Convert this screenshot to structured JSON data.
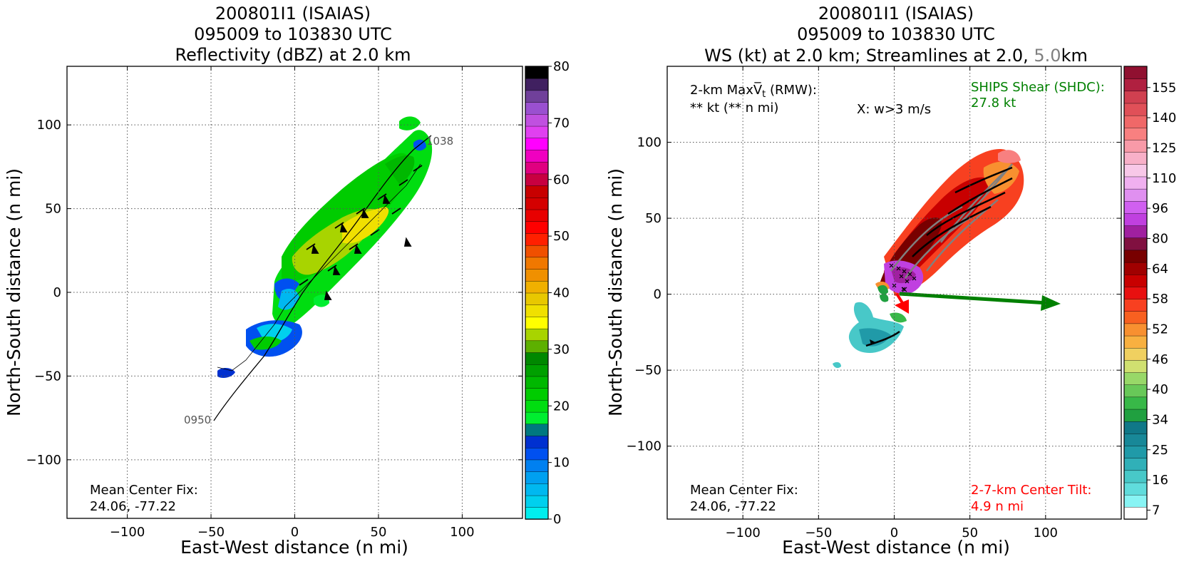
{
  "panels": [
    {
      "title_lines": [
        "200801I1 (ISAIAS)",
        "095009 to 103830 UTC",
        "Reflectivity (dBZ) at 2.0 km"
      ],
      "xlabel": "East-West distance (n mi)",
      "ylabel": "North-South distance (n mi)",
      "xlim": [
        -136,
        136
      ],
      "ylim": [
        -135,
        135
      ],
      "xticks": [
        -100,
        -50,
        0,
        50,
        100
      ],
      "yticks": [
        -100,
        -50,
        0,
        50,
        100
      ],
      "grid": true,
      "annotations": {
        "center_fix_label": "Mean Center Fix:",
        "center_fix_value": "24.06, -77.22",
        "track_start": "0950",
        "track_end": "1038"
      },
      "colorbar": {
        "tick_labels": [
          "0",
          "10",
          "20",
          "30",
          "40",
          "50",
          "60",
          "70",
          "80"
        ],
        "colors": [
          "#00eeee",
          "#00d0ee",
          "#00b8f0",
          "#00a0f0",
          "#0080f0",
          "#0050f0",
          "#0030d0",
          "#007880",
          "#00ee30",
          "#00dd10",
          "#00cc00",
          "#00b800",
          "#00a000",
          "#008800",
          "#5db000",
          "#a8d400",
          "#ffff00",
          "#f0e000",
          "#e8c800",
          "#f0b000",
          "#f09000",
          "#f07800",
          "#f05000",
          "#ff2000",
          "#ff0000",
          "#e80000",
          "#d40000",
          "#c80000",
          "#c80040",
          "#e00080",
          "#f000c0",
          "#ff00ff",
          "#e040f0",
          "#c050e0",
          "#9a50d0",
          "#70409a",
          "#402060",
          "#000000"
        ]
      }
    },
    {
      "title_lines": [
        "200801I1 (ISAIAS)",
        "095009 to 103830 UTC",
        "WS (kt) at 2.0 km; Streamlines at 2.0, ",
        "5.0",
        "km"
      ],
      "xlabel": "East-West distance (n mi)",
      "ylabel": "North-South distance (n mi)",
      "xlim": [
        -150,
        150
      ],
      "ylim": [
        -148,
        150
      ],
      "xticks": [
        -100,
        -50,
        0,
        50,
        100
      ],
      "yticks": [
        -100,
        -50,
        0,
        50,
        100
      ],
      "grid": true,
      "annotations": {
        "maxvt_line1": "2-km MaxV̅t (RMW):",
        "maxvt_line2": "** kt (** n mi)",
        "w_marker": "X: w>3 m/s",
        "shear_label": "SHIPS Shear (SHDC):",
        "shear_value": "27.8 kt",
        "center_fix_label": "Mean Center Fix:",
        "center_fix_value": "24.06, -77.22",
        "tilt_label": "2-7-km Center Tilt:",
        "tilt_value": "4.9 n mi"
      },
      "colorbar": {
        "tick_labels": [
          "7",
          "16",
          "25",
          "34",
          "40",
          "46",
          "52",
          "58",
          "64",
          "80",
          "96",
          "110",
          "125",
          "140",
          "155"
        ],
        "colors": [
          "#ffffff",
          "#88f4f4",
          "#60dcdc",
          "#48c8c8",
          "#30b0b8",
          "#209aa8",
          "#188898",
          "#107888",
          "#20a040",
          "#38b848",
          "#68c858",
          "#98d868",
          "#d0e070",
          "#f0d060",
          "#f8b040",
          "#f89030",
          "#f86020",
          "#f84020",
          "#e81010",
          "#c80000",
          "#a00000",
          "#780000",
          "#801040",
          "#a020a0",
          "#c040e0",
          "#d060f0",
          "#e090f0",
          "#f0b0f0",
          "#f8c8e8",
          "#f8b0c8",
          "#f89aa8",
          "#f88080",
          "#f06868",
          "#e05058",
          "#d04050",
          "#b02040",
          "#901030"
        ]
      },
      "shear_color": "#008000",
      "tilt_color": "#ff0000"
    }
  ]
}
